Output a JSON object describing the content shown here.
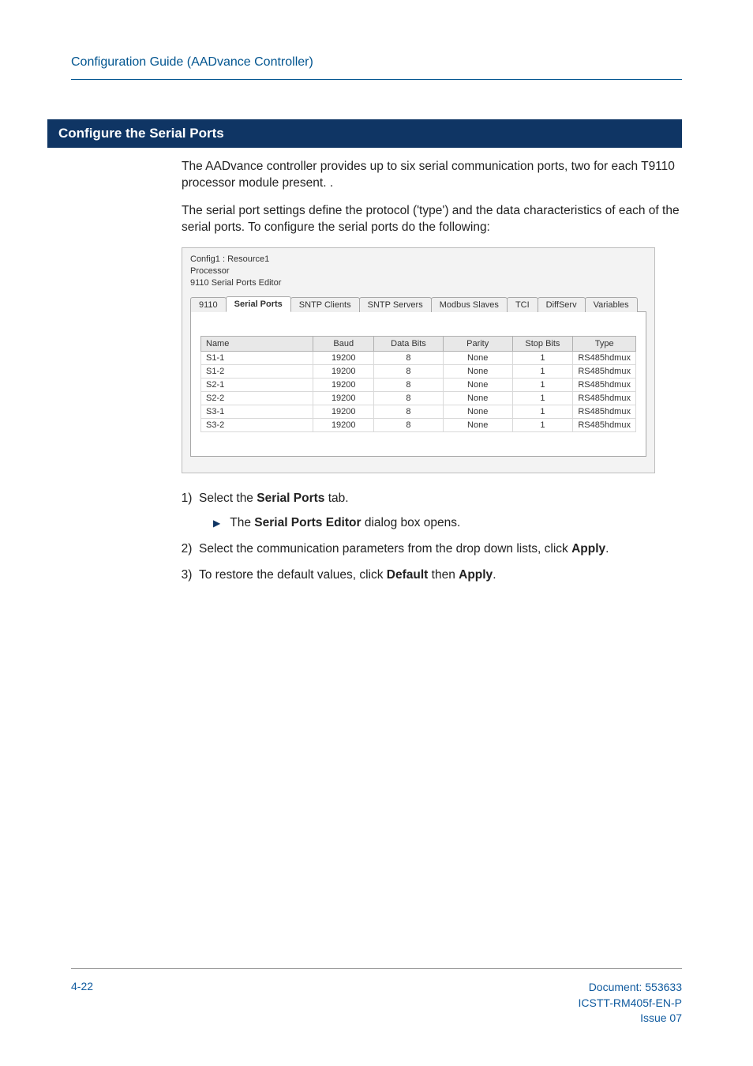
{
  "header": {
    "title": "Configuration Guide (AADvance Controller)"
  },
  "section": {
    "title": "Configure the Serial Ports",
    "para1": "The AADvance controller provides up to six serial communication ports, two for each T9110 processor module present. .",
    "para2": "The serial port settings define the protocol ('type') and the data characteristics of each of the serial ports. To configure the serial ports do the following:"
  },
  "screenshot": {
    "meta": {
      "line1": "Config1 : Resource1",
      "line2": "Processor",
      "line3": "9110 Serial Ports Editor"
    },
    "tabs": [
      "9110",
      "Serial Ports",
      "SNTP Clients",
      "SNTP Servers",
      "Modbus Slaves",
      "TCI",
      "DiffServ",
      "Variables"
    ],
    "active_tab_index": 1,
    "table": {
      "headers": [
        "Name",
        "Baud",
        "Data Bits",
        "Parity",
        "Stop Bits",
        "Type"
      ],
      "rows": [
        [
          "S1-1",
          "19200",
          "8",
          "None",
          "1",
          "RS485hdmux"
        ],
        [
          "S1-2",
          "19200",
          "8",
          "None",
          "1",
          "RS485hdmux"
        ],
        [
          "S2-1",
          "19200",
          "8",
          "None",
          "1",
          "RS485hdmux"
        ],
        [
          "S2-2",
          "19200",
          "8",
          "None",
          "1",
          "RS485hdmux"
        ],
        [
          "S3-1",
          "19200",
          "8",
          "None",
          "1",
          "RS485hdmux"
        ],
        [
          "S3-2",
          "19200",
          "8",
          "None",
          "1",
          "RS485hdmux"
        ]
      ],
      "col_widths": [
        "26%",
        "14%",
        "16%",
        "16%",
        "14%",
        "14%"
      ]
    },
    "colors": {
      "border": "#bdbdbd",
      "bg": "#f3f3f3",
      "tab_border": "#a8a8a8",
      "tab_bg": "#efefef",
      "th_bg": "#e8e8e8"
    }
  },
  "steps": {
    "s1_pre": "Select the ",
    "s1_bold": "Serial Ports",
    "s1_post": " tab.",
    "s1_sub_pre": "The ",
    "s1_sub_bold": "Serial Ports Editor",
    "s1_sub_post": " dialog box opens.",
    "s2_pre": "Select the communication parameters from the drop down lists, click ",
    "s2_bold": "Apply",
    "s2_post": ".",
    "s3_pre": "To restore the default values, click ",
    "s3_bold1": "Default",
    "s3_mid": " then ",
    "s3_bold2": "Apply",
    "s3_post": "."
  },
  "footer": {
    "left": "4-22",
    "right1": "Document: 553633",
    "right2": "ICSTT-RM405f-EN-P",
    "right3": "Issue 07"
  }
}
